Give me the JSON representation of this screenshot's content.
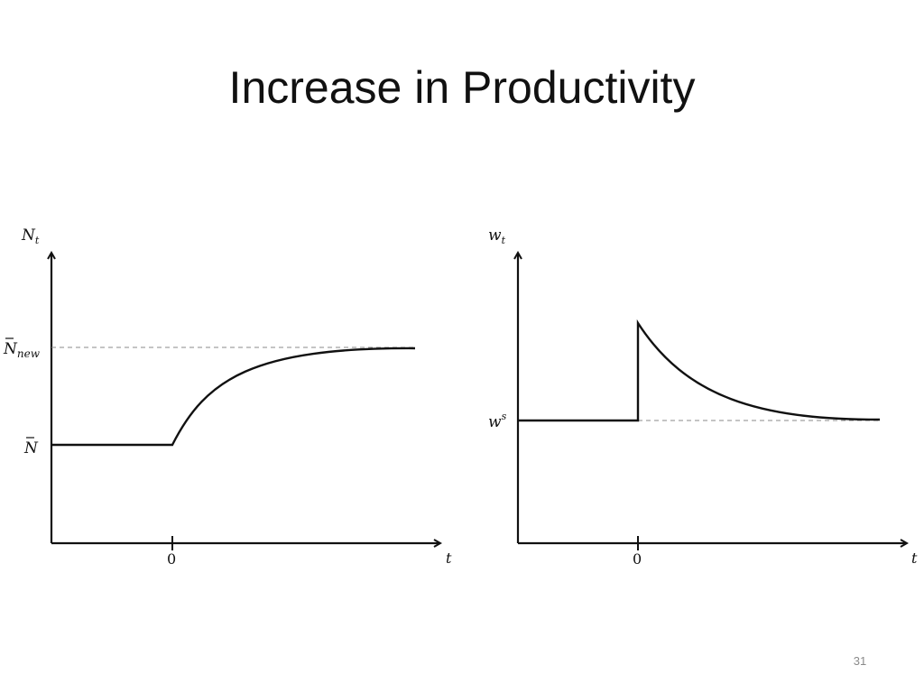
{
  "slide": {
    "title": "Increase in Productivity",
    "page_number": "31"
  },
  "left_panel": {
    "y_axis_label": {
      "base": "N",
      "sub": "t"
    },
    "x_axis_label": "t",
    "zero_tick": "0",
    "level_low": {
      "base": "N",
      "bar": true
    },
    "level_high": {
      "base": "N",
      "sub": "new",
      "bar": true
    },
    "curve": "employment rises smoothly from N̄ to N̄_new after t = 0"
  },
  "right_panel": {
    "y_axis_label": {
      "base": "w",
      "sub": "t"
    },
    "x_axis_label": "t",
    "zero_tick": "0",
    "level": {
      "base": "w",
      "sup": "s"
    },
    "curve": "wage jumps up at t = 0 then decays back to w^s"
  },
  "colors": {
    "axis": "#111111",
    "curve": "#111111",
    "dashed": "#8a8a8a",
    "title": "#111111",
    "page_number": "#8a8a8a"
  }
}
